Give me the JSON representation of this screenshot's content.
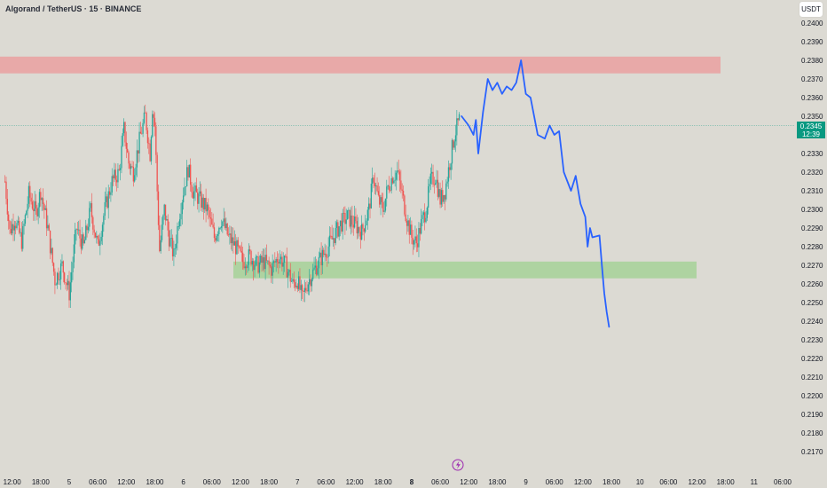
{
  "header": {
    "title": "Algorand / TetherUS · 15 · BINANCE",
    "currency": "USDT"
  },
  "price_tag": {
    "price": "0.2345",
    "countdown": "12:39"
  },
  "colors": {
    "background": "#dcdad3",
    "up_candle": "#26a69a",
    "down_candle": "#ef5350",
    "resistance_zone": "#e9a3a3",
    "support_zone": "#a9d19b",
    "projection_line": "#2962ff",
    "price_tag": "#089981"
  },
  "icons": {
    "bottom_marker": "lightning-icon"
  },
  "chart_data": {
    "type": "candlestick",
    "title": "Algorand / TetherUS · 15 · BINANCE",
    "x_tick_labels": [
      "12:00",
      "18:00",
      "5",
      "06:00",
      "12:00",
      "18:00",
      "6",
      "06:00",
      "12:00",
      "18:00",
      "7",
      "06:00",
      "12:00",
      "18:00",
      "8",
      "06:00",
      "12:00",
      "18:00",
      "9",
      "06:00",
      "12:00",
      "18:00",
      "10",
      "06:00",
      "12:00",
      "18:00",
      "11",
      "06:00"
    ],
    "x_tick_hours": [
      -12,
      -6,
      0,
      6,
      12,
      18,
      24,
      30,
      36,
      42,
      48,
      54,
      60,
      66,
      72,
      78,
      84,
      90,
      96,
      102,
      108,
      114,
      120,
      126,
      132,
      138,
      144,
      150
    ],
    "bold_tick_labels": [
      "8"
    ],
    "y_tick_labels": [
      "0.2400",
      "0.2390",
      "0.2380",
      "0.2370",
      "0.2360",
      "0.2350",
      "0.2340",
      "0.2330",
      "0.2320",
      "0.2310",
      "0.2300",
      "0.2290",
      "0.2280",
      "0.2270",
      "0.2260",
      "0.2250",
      "0.2240",
      "0.2230",
      "0.2220",
      "0.2210",
      "0.2200",
      "0.2190",
      "0.2180",
      "0.2170"
    ],
    "ylim": [
      0.2165,
      0.2405
    ],
    "current_price": 0.2345,
    "resistance_zone": {
      "low": 0.2373,
      "high": 0.2382
    },
    "support_zone": {
      "low": 0.2263,
      "high": 0.2272
    },
    "price_path": [
      [
        -13.5,
        0.2315
      ],
      [
        -12.5,
        0.2288
      ],
      [
        -11.5,
        0.2295
      ],
      [
        -10,
        0.2283
      ],
      [
        -8.5,
        0.2308
      ],
      [
        -7,
        0.2298
      ],
      [
        -6,
        0.231
      ],
      [
        -4.5,
        0.229
      ],
      [
        -3,
        0.2262
      ],
      [
        -1.5,
        0.227
      ],
      [
        0,
        0.2255
      ],
      [
        1.5,
        0.229
      ],
      [
        3,
        0.228
      ],
      [
        4.5,
        0.23
      ],
      [
        6,
        0.228
      ],
      [
        7.5,
        0.23
      ],
      [
        9,
        0.2315
      ],
      [
        10.5,
        0.232
      ],
      [
        11.5,
        0.2343
      ],
      [
        12.5,
        0.2325
      ],
      [
        13.5,
        0.232
      ],
      [
        15,
        0.234
      ],
      [
        16,
        0.235
      ],
      [
        17,
        0.233
      ],
      [
        17.5,
        0.2355
      ],
      [
        18,
        0.2345
      ],
      [
        18.5,
        0.231
      ],
      [
        19,
        0.2278
      ],
      [
        20,
        0.23
      ],
      [
        21,
        0.2285
      ],
      [
        22,
        0.2275
      ],
      [
        23,
        0.2295
      ],
      [
        24,
        0.231
      ],
      [
        25,
        0.2322
      ],
      [
        26,
        0.231
      ],
      [
        27.5,
        0.2305
      ],
      [
        29,
        0.23
      ],
      [
        30.5,
        0.2285
      ],
      [
        32,
        0.2295
      ],
      [
        33.5,
        0.2285
      ],
      [
        35,
        0.228
      ],
      [
        36.5,
        0.2272
      ],
      [
        38,
        0.2275
      ],
      [
        39.5,
        0.227
      ],
      [
        41,
        0.2272
      ],
      [
        42.5,
        0.2268
      ],
      [
        44,
        0.2275
      ],
      [
        45.5,
        0.227
      ],
      [
        47,
        0.226
      ],
      [
        48,
        0.2262
      ],
      [
        49,
        0.2252
      ],
      [
        50,
        0.226
      ],
      [
        51,
        0.2265
      ],
      [
        52.5,
        0.2272
      ],
      [
        54,
        0.2278
      ],
      [
        55.5,
        0.2285
      ],
      [
        57,
        0.2292
      ],
      [
        58.5,
        0.2296
      ],
      [
        60,
        0.2292
      ],
      [
        61.5,
        0.2288
      ],
      [
        63,
        0.23
      ],
      [
        64,
        0.2318
      ],
      [
        65,
        0.2305
      ],
      [
        66,
        0.23
      ],
      [
        67,
        0.2312
      ],
      [
        68,
        0.2318
      ],
      [
        69,
        0.232
      ],
      [
        70,
        0.2308
      ],
      [
        71,
        0.2295
      ],
      [
        72,
        0.2285
      ],
      [
        73,
        0.2282
      ],
      [
        74,
        0.2292
      ],
      [
        75,
        0.23
      ],
      [
        76,
        0.2315
      ],
      [
        77,
        0.2318
      ],
      [
        78,
        0.2305
      ],
      [
        79,
        0.231
      ],
      [
        80,
        0.2325
      ],
      [
        81,
        0.234
      ],
      [
        82,
        0.2348
      ]
    ],
    "projection": [
      [
        82.5,
        0.235
      ],
      [
        84,
        0.2345
      ],
      [
        85,
        0.234
      ],
      [
        85.5,
        0.2348
      ],
      [
        86,
        0.233
      ],
      [
        87,
        0.2352
      ],
      [
        88,
        0.237
      ],
      [
        89,
        0.2364
      ],
      [
        90,
        0.2368
      ],
      [
        91,
        0.2362
      ],
      [
        92,
        0.2366
      ],
      [
        93,
        0.2364
      ],
      [
        94,
        0.2368
      ],
      [
        95,
        0.238
      ],
      [
        96,
        0.2362
      ],
      [
        97,
        0.236
      ],
      [
        98.5,
        0.234
      ],
      [
        100,
        0.2338
      ],
      [
        101,
        0.2345
      ],
      [
        102,
        0.234
      ],
      [
        103,
        0.2342
      ],
      [
        104,
        0.232
      ],
      [
        105.5,
        0.231
      ],
      [
        106.5,
        0.2318
      ],
      [
        107.5,
        0.2303
      ],
      [
        108.5,
        0.2296
      ],
      [
        109,
        0.228
      ],
      [
        109.5,
        0.229
      ],
      [
        110,
        0.2285
      ],
      [
        111.5,
        0.2286
      ],
      [
        112,
        0.227
      ],
      [
        112.5,
        0.2255
      ],
      [
        113,
        0.2245
      ],
      [
        113.5,
        0.2237
      ]
    ]
  }
}
